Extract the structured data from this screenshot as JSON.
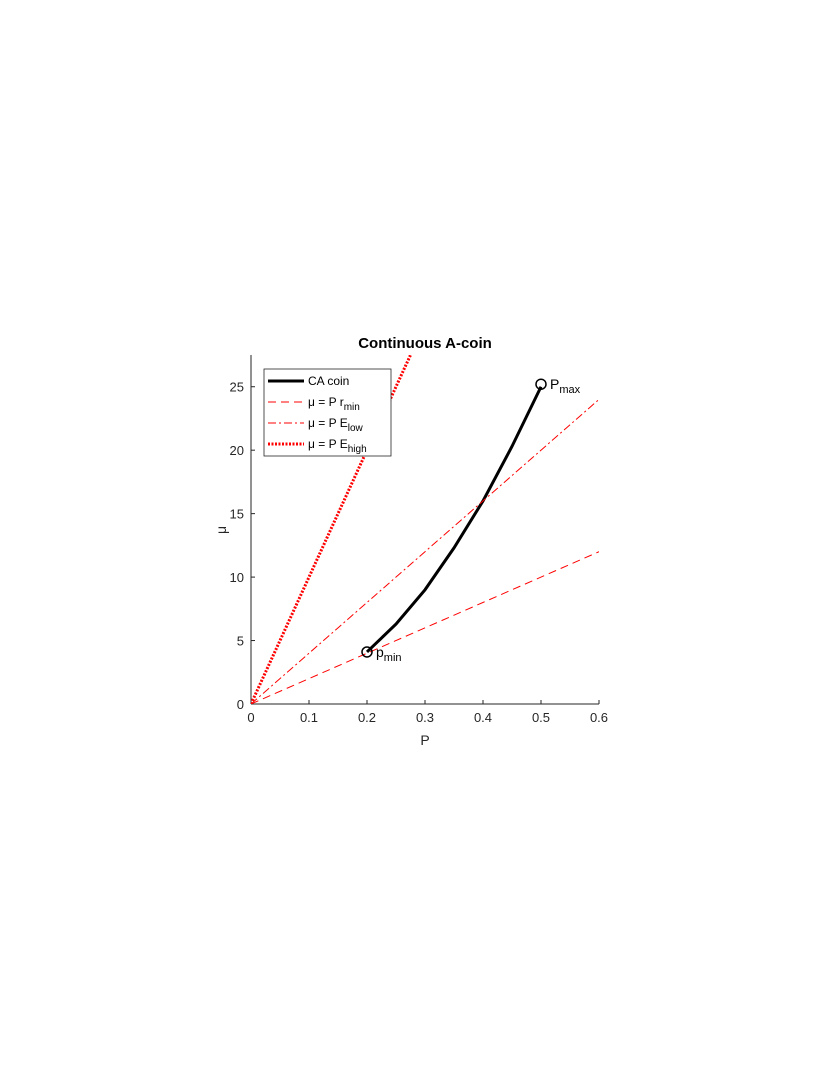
{
  "chart_data": {
    "type": "line",
    "title": "Continuous A-coin",
    "xlabel": "P",
    "ylabel": "μ",
    "xlim": [
      0,
      0.6
    ],
    "ylim": [
      0,
      27.5
    ],
    "xticks": [
      0,
      0.1,
      0.2,
      0.3,
      0.4,
      0.5,
      0.6
    ],
    "yticks": [
      0,
      5,
      10,
      15,
      20,
      25
    ],
    "series": [
      {
        "name": "CA coin",
        "color": "#000000",
        "style": "solid",
        "x": [
          0.2,
          0.25,
          0.3,
          0.35,
          0.4,
          0.45,
          0.5
        ],
        "values": [
          4.1,
          6.3,
          9.0,
          12.3,
          16,
          20.3,
          25
        ]
      },
      {
        "name": "μ = P r",
        "name_sub": "min",
        "color": "#ff0000",
        "style": "dashed",
        "x": [
          0,
          0.6
        ],
        "values": [
          0,
          12
        ]
      },
      {
        "name": "μ = P E",
        "name_sub": "low",
        "color": "#ff0000",
        "style": "dashdot",
        "x": [
          0,
          0.6
        ],
        "values": [
          0,
          24
        ]
      },
      {
        "name": "μ = P E",
        "name_sub": "high",
        "color": "#ff0000",
        "style": "dotted",
        "x": [
          0,
          0.275
        ],
        "values": [
          0,
          27.5
        ]
      }
    ],
    "markers": [
      {
        "x": 0.2,
        "y": 4.1,
        "label": "p",
        "label_sub": "min"
      },
      {
        "x": 0.5,
        "y": 25.2,
        "label": "P",
        "label_sub": "max"
      }
    ],
    "legend": "upper left"
  }
}
